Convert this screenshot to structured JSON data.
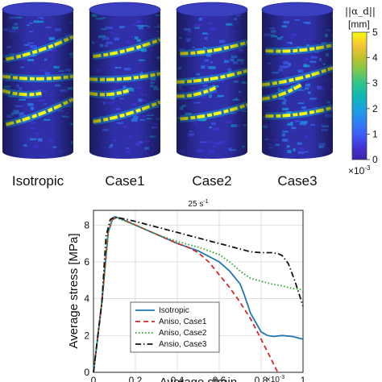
{
  "colorbar": {
    "title": "||α_d||",
    "unit": "[mm]",
    "ticks": [
      "0",
      "1",
      "2",
      "3",
      "4",
      "5"
    ],
    "exponent_base": "×10",
    "exponent_power": "-3",
    "range": [
      0,
      5
    ],
    "colormap": [
      "#3e26a8",
      "#4433d6",
      "#3d5ff9",
      "#2c83f4",
      "#19a3dd",
      "#0db8b5",
      "#33c48a",
      "#7bc84e",
      "#c2bf2e",
      "#f7c634",
      "#f9fb0e"
    ]
  },
  "cylinders": [
    {
      "label": "Isotropic"
    },
    {
      "label": "Case1"
    },
    {
      "label": "Case2"
    },
    {
      "label": "Case3"
    }
  ],
  "plot": {
    "title_value": "25 s",
    "title_power": "-1",
    "xlabel": "Average strain",
    "ylabel": "Average stress [MPa]",
    "x_exponent_base": "×10",
    "x_exponent_power": "-3",
    "xticks": [
      "0",
      "0.2",
      "0.4",
      "0.6",
      "0.8",
      "1"
    ],
    "yticks": [
      "0",
      "2",
      "4",
      "6",
      "8"
    ],
    "legend": [
      "Isotropic",
      "Aniso, Case1",
      "Aniso, Case2",
      "Ansio, Case3"
    ]
  },
  "chart_data": {
    "type": "line",
    "title": "25 s-1",
    "xlabel": "Average strain",
    "ylabel": "Average stress [MPa]",
    "xlim": [
      0,
      1
    ],
    "ylim": [
      0,
      8.8
    ],
    "x_scale_note": "×10^-3",
    "grid": true,
    "legend_position": "lower-left",
    "series": [
      {
        "name": "Isotropic",
        "color": "#1f77b4",
        "style": "solid",
        "x": [
          0,
          0.04,
          0.07,
          0.09,
          0.1,
          0.13,
          0.2,
          0.3,
          0.4,
          0.45,
          0.5,
          0.55,
          0.6,
          0.65,
          0.7,
          0.72,
          0.75,
          0.78,
          0.8,
          0.83,
          0.86,
          0.9,
          0.95,
          1.0
        ],
        "y": [
          0,
          3.8,
          7.6,
          8.3,
          8.45,
          8.35,
          8.0,
          7.5,
          7.0,
          6.8,
          6.6,
          6.3,
          6.0,
          5.5,
          4.8,
          4.2,
          3.2,
          2.6,
          2.2,
          2.0,
          1.95,
          2.0,
          1.95,
          1.8
        ]
      },
      {
        "name": "Aniso, Case1",
        "color": "#d62728",
        "style": "dashed",
        "x": [
          0,
          0.04,
          0.07,
          0.09,
          0.11,
          0.13,
          0.2,
          0.3,
          0.4,
          0.45,
          0.5,
          0.55,
          0.6,
          0.65,
          0.7,
          0.75,
          0.8,
          0.84,
          0.87,
          0.88
        ],
        "y": [
          0,
          3.8,
          7.6,
          8.3,
          8.4,
          8.35,
          8.0,
          7.5,
          7.0,
          6.8,
          6.5,
          6.0,
          5.3,
          4.6,
          3.8,
          2.9,
          1.8,
          0.9,
          0.2,
          0
        ]
      },
      {
        "name": "Aniso, Case2",
        "color": "#2ca02c",
        "style": "dotted",
        "x": [
          0,
          0.04,
          0.07,
          0.09,
          0.11,
          0.13,
          0.2,
          0.3,
          0.4,
          0.5,
          0.55,
          0.6,
          0.65,
          0.7,
          0.75,
          0.8,
          0.85,
          0.9,
          0.95,
          1.0
        ],
        "y": [
          0,
          3.8,
          7.6,
          8.3,
          8.4,
          8.3,
          8.0,
          7.5,
          7.1,
          6.8,
          6.6,
          6.4,
          6.0,
          5.5,
          5.1,
          4.95,
          4.8,
          4.7,
          4.55,
          4.5
        ]
      },
      {
        "name": "Ansio, Case3",
        "color": "#111111",
        "style": "dashdot",
        "x": [
          0,
          0.04,
          0.06,
          0.08,
          0.1,
          0.12,
          0.2,
          0.3,
          0.4,
          0.5,
          0.6,
          0.7,
          0.75,
          0.8,
          0.85,
          0.88,
          0.9,
          0.93,
          0.96,
          1.0
        ],
        "y": [
          0,
          3.8,
          7.4,
          8.3,
          8.45,
          8.4,
          8.2,
          7.9,
          7.6,
          7.3,
          7.0,
          6.7,
          6.55,
          6.5,
          6.5,
          6.45,
          6.35,
          5.9,
          5.0,
          3.6
        ]
      }
    ]
  }
}
